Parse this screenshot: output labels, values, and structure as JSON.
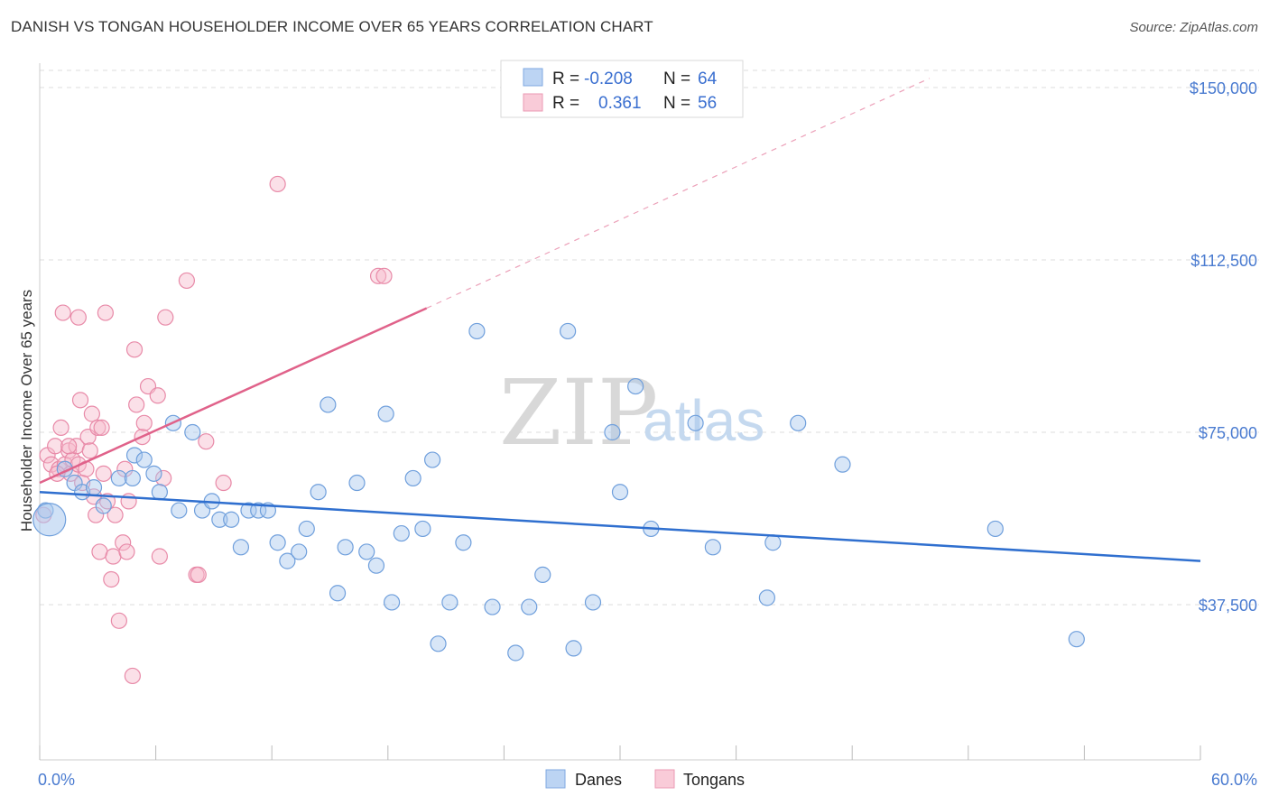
{
  "header": {
    "title": "DANISH VS TONGAN HOUSEHOLDER INCOME OVER 65 YEARS CORRELATION CHART",
    "source": "Source: ZipAtlas.com"
  },
  "watermark": {
    "zip": "ZIP",
    "atlas": "atlas"
  },
  "legend_top": {
    "rows": [
      {
        "r_label": "R =",
        "r_value": "-0.208",
        "n_label": "N =",
        "n_value": "64",
        "color": "#9dc3ef"
      },
      {
        "r_label": "R =",
        "r_value": "0.361",
        "n_label": "N =",
        "n_value": "56",
        "color": "#f5b3c6"
      }
    ]
  },
  "legend_bottom": {
    "items": [
      {
        "label": "Danes",
        "color": "#9dc3ef"
      },
      {
        "label": "Tongans",
        "color": "#f5b3c6"
      }
    ]
  },
  "colors": {
    "danes_fill": "#a9c8ee",
    "danes_stroke": "#6f9fdc",
    "danes_line": "#2f6fcf",
    "tongans_fill": "#f6bacb",
    "tongans_stroke": "#e88aa8",
    "tongans_line": "#e0628a",
    "axis_text": "#4a7bd0",
    "grid": "#dddddd"
  },
  "chart_data": {
    "type": "scatter",
    "title": "DANISH VS TONGAN HOUSEHOLDER INCOME OVER 65 YEARS CORRELATION CHART",
    "xlabel": "",
    "ylabel": "Householder Income Over 65 years",
    "xlim": [
      0,
      60
    ],
    "ylim": [
      0,
      160000
    ],
    "x_tick_labels": [
      "0.0%",
      "60.0%"
    ],
    "y_ticks": [
      37500,
      75000,
      112500,
      150000
    ],
    "y_tick_labels": [
      "$37,500",
      "$75,000",
      "$112,500",
      "$150,000"
    ],
    "grid": true,
    "legend": "top-center and bottom",
    "series": [
      {
        "name": "Danes",
        "r": -0.208,
        "n": 64,
        "trend": {
          "x": [
            0,
            60
          ],
          "y": [
            62000,
            47000
          ]
        },
        "points": [
          [
            0.3,
            58000
          ],
          [
            1.3,
            67000
          ],
          [
            1.8,
            64000
          ],
          [
            2.2,
            62000
          ],
          [
            2.8,
            63000
          ],
          [
            3.3,
            59000
          ],
          [
            4.1,
            65000
          ],
          [
            4.8,
            65000
          ],
          [
            4.9,
            70000
          ],
          [
            5.4,
            69000
          ],
          [
            5.9,
            66000
          ],
          [
            6.2,
            62000
          ],
          [
            6.9,
            77000
          ],
          [
            7.2,
            58000
          ],
          [
            7.9,
            75000
          ],
          [
            8.4,
            58000
          ],
          [
            8.9,
            60000
          ],
          [
            9.3,
            56000
          ],
          [
            9.9,
            56000
          ],
          [
            10.4,
            50000
          ],
          [
            10.8,
            58000
          ],
          [
            11.3,
            58000
          ],
          [
            11.8,
            58000
          ],
          [
            12.3,
            51000
          ],
          [
            12.8,
            47000
          ],
          [
            13.4,
            49000
          ],
          [
            13.8,
            54000
          ],
          [
            14.4,
            62000
          ],
          [
            14.9,
            81000
          ],
          [
            15.4,
            40000
          ],
          [
            15.8,
            50000
          ],
          [
            16.4,
            64000
          ],
          [
            16.9,
            49000
          ],
          [
            17.4,
            46000
          ],
          [
            17.9,
            79000
          ],
          [
            18.2,
            38000
          ],
          [
            18.7,
            53000
          ],
          [
            19.3,
            65000
          ],
          [
            19.8,
            54000
          ],
          [
            20.3,
            69000
          ],
          [
            20.6,
            29000
          ],
          [
            21.2,
            38000
          ],
          [
            21.9,
            51000
          ],
          [
            22.6,
            97000
          ],
          [
            23.4,
            37000
          ],
          [
            24.6,
            27000
          ],
          [
            25.3,
            37000
          ],
          [
            26.0,
            44000
          ],
          [
            27.3,
            97000
          ],
          [
            27.6,
            28000
          ],
          [
            28.6,
            38000
          ],
          [
            29.6,
            75000
          ],
          [
            30.0,
            62000
          ],
          [
            30.8,
            85000
          ],
          [
            31.6,
            54000
          ],
          [
            33.9,
            77000
          ],
          [
            34.8,
            50000
          ],
          [
            37.6,
            39000
          ],
          [
            37.9,
            51000
          ],
          [
            39.2,
            77000
          ],
          [
            41.5,
            68000
          ],
          [
            49.4,
            54000
          ],
          [
            53.6,
            30000
          ],
          [
            0.5,
            56000
          ]
        ]
      },
      {
        "name": "Tongans",
        "r": 0.361,
        "n": 56,
        "trend": {
          "x": [
            0,
            20
          ],
          "y": [
            64000,
            102000
          ]
        },
        "trend_extension": {
          "x": [
            20,
            46
          ],
          "y": [
            102000,
            152000
          ]
        },
        "points": [
          [
            0.2,
            57000
          ],
          [
            0.4,
            70000
          ],
          [
            0.6,
            68000
          ],
          [
            0.8,
            72000
          ],
          [
            1.0,
            67000
          ],
          [
            1.1,
            76000
          ],
          [
            1.3,
            68000
          ],
          [
            1.5,
            71000
          ],
          [
            1.6,
            66000
          ],
          [
            1.7,
            69000
          ],
          [
            1.9,
            72000
          ],
          [
            2.0,
            68000
          ],
          [
            2.1,
            82000
          ],
          [
            2.2,
            64000
          ],
          [
            2.4,
            67000
          ],
          [
            2.5,
            74000
          ],
          [
            2.7,
            79000
          ],
          [
            2.8,
            61000
          ],
          [
            2.9,
            57000
          ],
          [
            3.0,
            76000
          ],
          [
            3.1,
            49000
          ],
          [
            3.3,
            66000
          ],
          [
            3.4,
            101000
          ],
          [
            3.5,
            60000
          ],
          [
            3.7,
            43000
          ],
          [
            3.8,
            48000
          ],
          [
            3.9,
            57000
          ],
          [
            4.1,
            34000
          ],
          [
            4.3,
            51000
          ],
          [
            4.4,
            67000
          ],
          [
            4.5,
            49000
          ],
          [
            4.6,
            60000
          ],
          [
            4.8,
            22000
          ],
          [
            4.9,
            93000
          ],
          [
            5.0,
            81000
          ],
          [
            5.3,
            74000
          ],
          [
            5.4,
            77000
          ],
          [
            5.6,
            85000
          ],
          [
            6.1,
            83000
          ],
          [
            6.2,
            48000
          ],
          [
            6.4,
            65000
          ],
          [
            6.5,
            100000
          ],
          [
            7.6,
            108000
          ],
          [
            8.1,
            44000
          ],
          [
            8.2,
            44000
          ],
          [
            8.6,
            73000
          ],
          [
            9.5,
            64000
          ],
          [
            12.3,
            129000
          ],
          [
            17.5,
            109000
          ],
          [
            17.8,
            109000
          ],
          [
            1.2,
            101000
          ],
          [
            2.0,
            100000
          ],
          [
            2.6,
            71000
          ],
          [
            1.5,
            72000
          ],
          [
            3.2,
            76000
          ],
          [
            0.9,
            66000
          ]
        ]
      }
    ]
  }
}
